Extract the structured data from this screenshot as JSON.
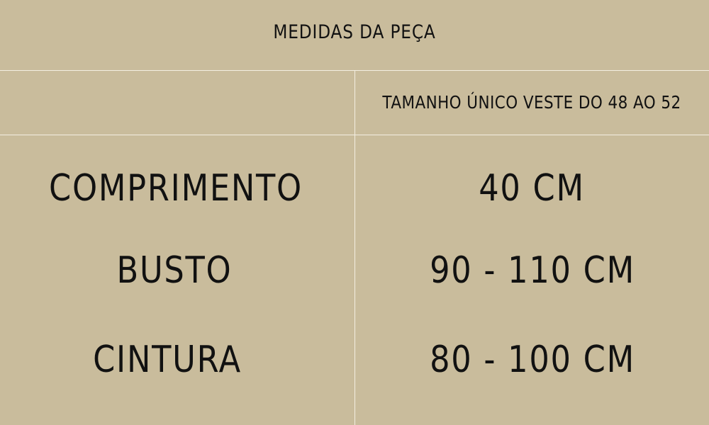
{
  "title": "MEDIDAS DA PEÇA",
  "size_header": "TAMANHO ÚNICO VESTE DO 48 AO 52",
  "rows": [
    {
      "label": "COMPRIMENTO",
      "value": "40 CM"
    },
    {
      "label": "BUSTO",
      "value": "90 - 110 CM"
    },
    {
      "label": "CINTURA",
      "value": "80 - 100 CM"
    }
  ],
  "colors": {
    "background": "#c9bc9c",
    "lines": "#f4efe2",
    "text": "#111111"
  }
}
